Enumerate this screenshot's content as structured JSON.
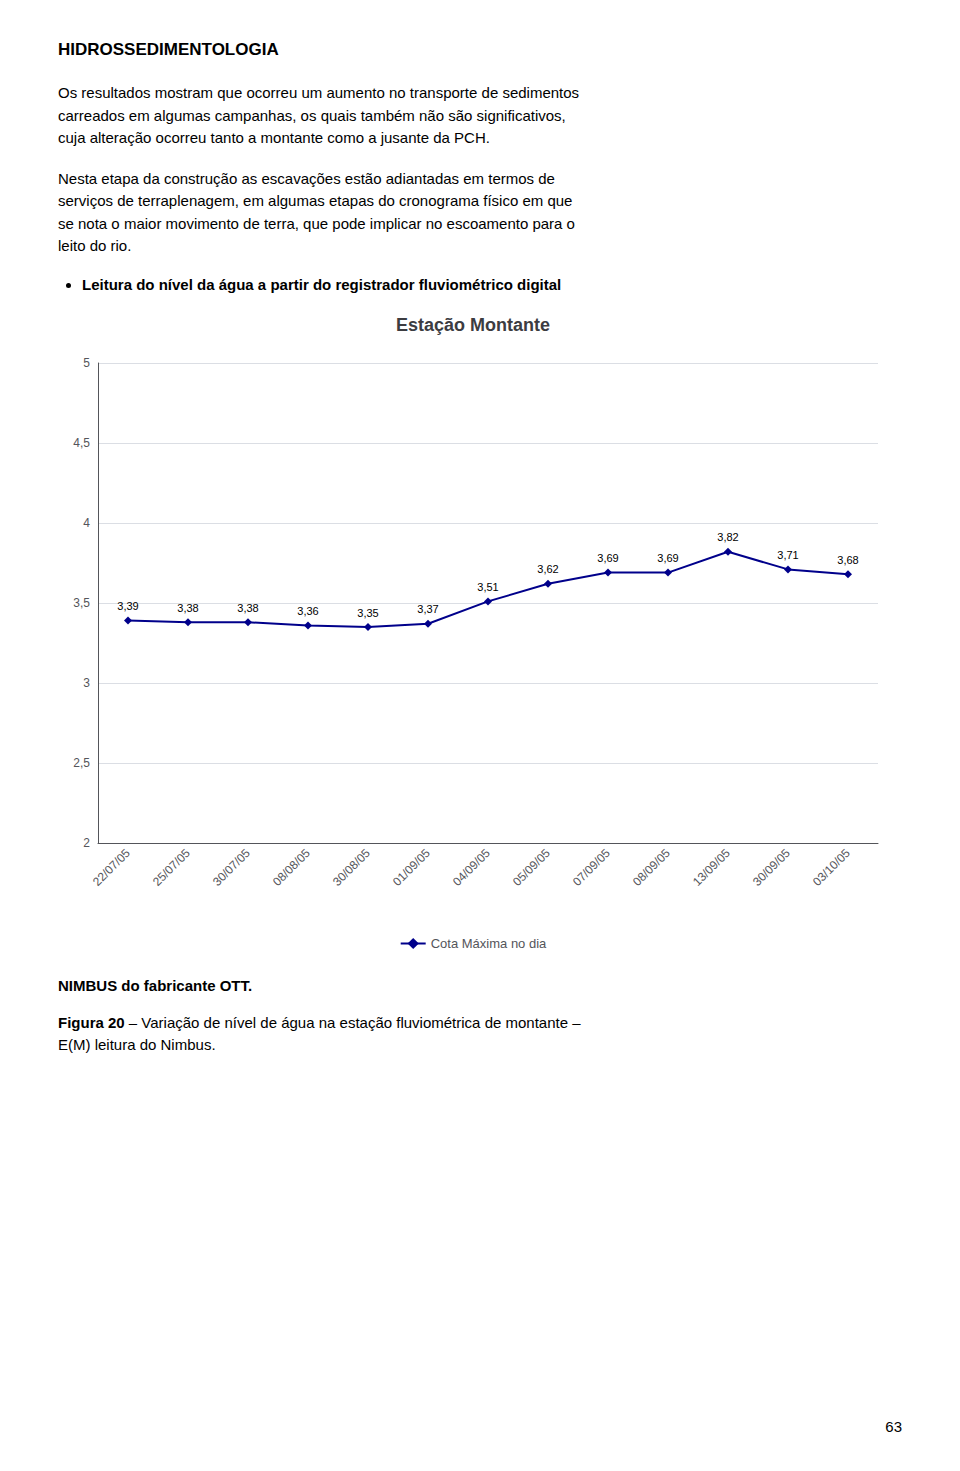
{
  "chart_data": {
    "type": "line",
    "title": "Estação Montante",
    "categories": [
      "22/07/05",
      "25/07/05",
      "30/07/05",
      "08/08/05",
      "30/08/05",
      "01/09/05",
      "04/09/05",
      "05/09/05",
      "07/09/05",
      "08/09/05",
      "13/09/05",
      "30/09/05",
      "03/10/05"
    ],
    "series": [
      {
        "name": "Cota Máxima no dia",
        "color": "#00008B",
        "marker": "diamond",
        "values": [
          3.39,
          3.38,
          3.38,
          3.36,
          3.35,
          3.37,
          3.51,
          3.62,
          3.69,
          3.69,
          3.82,
          3.71,
          3.68
        ],
        "value_labels": [
          "3,39",
          "3,38",
          "3,38",
          "3,36",
          "3,35",
          "3,37",
          "3,51",
          "3,62",
          "3,69",
          "3,69",
          "3,82",
          "3,71",
          "3,68"
        ]
      }
    ],
    "ylim": [
      2.0,
      5.0
    ],
    "yticks": [
      2,
      {
        "value": 2.5,
        "label": "2,5"
      },
      3,
      {
        "value": 3.5,
        "label": "3,5"
      },
      4,
      {
        "value": 4.5,
        "label": "4,5"
      },
      5
    ],
    "grid": true,
    "data_labels": true,
    "legend": "bottom"
  },
  "heading": "HIDROSSEDIMENTOLOGIA",
  "paragraphs": [
    "Os resultados mostram que ocorreu um aumento no transporte de sedimentos\ncarreados em algumas campanhas, os quais também não são significativos,\ncuja alteração ocorreu tanto a montante como a jusante da PCH.",
    "Nesta etapa da construção as escavações estão adiantadas em termos de\nserviços de terraplenagem, em algumas etapas do cronograma físico em que\nse nota o maior movimento de terra, que pode implicar no escoamento para o\nleito do rio."
  ],
  "bullet": "Leitura do nível da água a partir do registrador fluviométrico digital",
  "note": "NIMBUS do fabricante OTT.",
  "caption_label": "Figura 20",
  "caption": " – Variação de nível de água na estação fluviométrica de montante –\nE(M) leitura do Nimbus.",
  "page_number": "63"
}
